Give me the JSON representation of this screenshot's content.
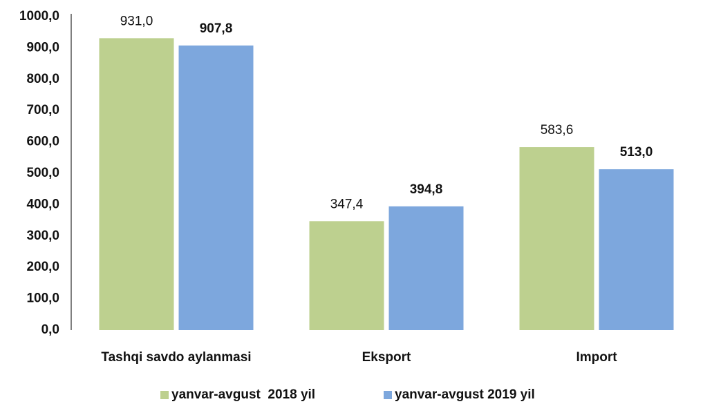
{
  "chart_data": {
    "type": "bar",
    "categories": [
      "Tashqi savdo aylanmasi",
      "Eksport",
      "Import"
    ],
    "series": [
      {
        "name": "yanvar-avgust  2018 yil",
        "color": "#bdd08f",
        "values": [
          931.0,
          347.4,
          583.6
        ],
        "value_labels": [
          "931,0",
          "347,4",
          "583,6"
        ]
      },
      {
        "name": "yanvar-avgust 2019 yil",
        "color": "#7da7dd",
        "values": [
          907.8,
          394.8,
          513.0
        ],
        "value_labels": [
          "907,8",
          "394,8",
          "513,0"
        ]
      }
    ],
    "ylim": [
      0,
      1000
    ],
    "yticks": [
      {
        "value": 0,
        "label": "0,0"
      },
      {
        "value": 100,
        "label": "100,0"
      },
      {
        "value": 200,
        "label": "200,0"
      },
      {
        "value": 300,
        "label": "300,0"
      },
      {
        "value": 400,
        "label": "400,0"
      },
      {
        "value": 500,
        "label": "500,0"
      },
      {
        "value": 600,
        "label": "600,0"
      },
      {
        "value": 700,
        "label": "700,0"
      },
      {
        "value": 800,
        "label": "800,0"
      },
      {
        "value": 900,
        "label": "900,0"
      },
      {
        "value": 1000,
        "label": "1000,0"
      }
    ],
    "grid": false,
    "legend": "bottom"
  }
}
